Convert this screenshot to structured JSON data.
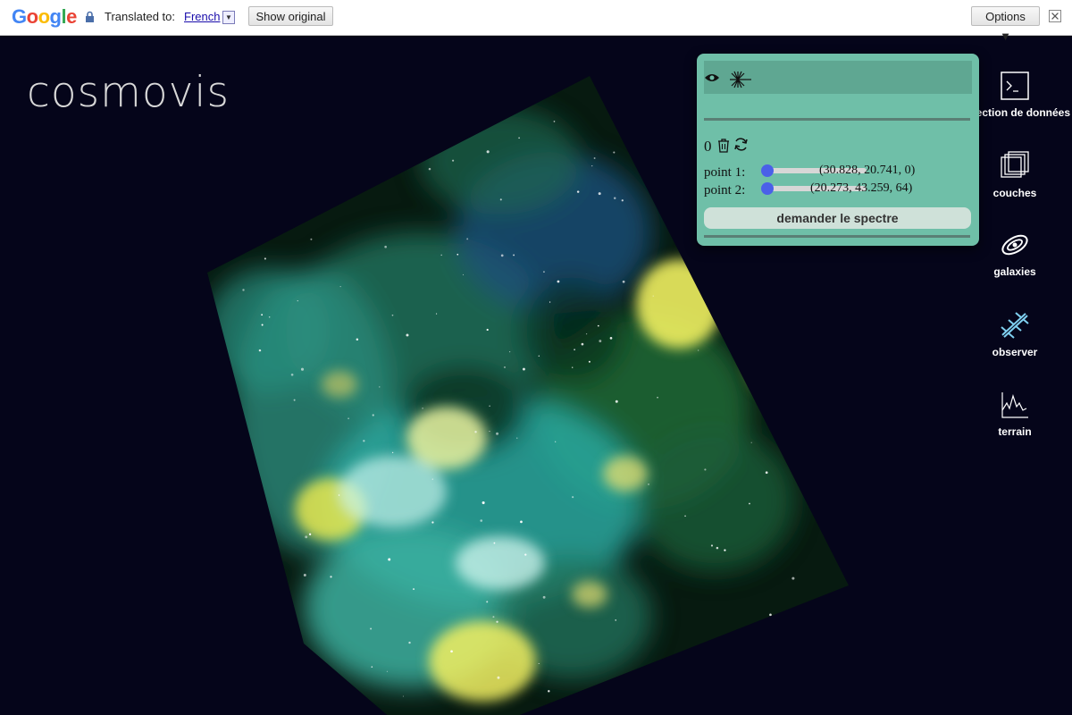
{
  "translate_bar": {
    "logo": "Google",
    "translated_label": "Translated to:",
    "language": "French",
    "show_original": "Show original",
    "options": "Options ▼"
  },
  "app": {
    "title": "cosmovis"
  },
  "panel": {
    "count": "0",
    "point1_label": "point 1:",
    "point1_value": "(30.828, 20.741, 0)",
    "point1_slider": 0,
    "point2_label": "point 2:",
    "point2_value": "(20.273, 43.259, 64)",
    "point2_slider": 0,
    "request_button": "demander le spectre"
  },
  "menu": [
    {
      "label": "sélection de données",
      "icon": "terminal-icon"
    },
    {
      "label": "couches",
      "icon": "layers-icon"
    },
    {
      "label": "galaxies",
      "icon": "galaxy-icon"
    },
    {
      "label": "observer",
      "icon": "telescope-icon"
    },
    {
      "label": "terrain",
      "icon": "terrain-chart-icon"
    }
  ],
  "colors": {
    "background": "#05051a",
    "panel": "#6fbfa8",
    "accent": "#4a60e8"
  }
}
